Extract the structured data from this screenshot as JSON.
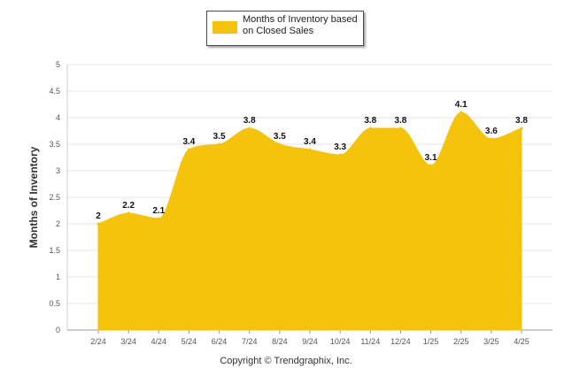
{
  "chart_data": {
    "type": "area",
    "categories": [
      "2/24",
      "3/24",
      "4/24",
      "5/24",
      "6/24",
      "7/24",
      "8/24",
      "9/24",
      "10/24",
      "11/24",
      "12/24",
      "1/25",
      "2/25",
      "3/25",
      "4/25"
    ],
    "series": [
      {
        "name": "Months of Inventory based on Closed Sales",
        "values": [
          2,
          2.2,
          2.1,
          3.4,
          3.5,
          3.8,
          3.5,
          3.4,
          3.3,
          3.8,
          3.8,
          3.1,
          4.1,
          3.6,
          3.8
        ],
        "color": "#f5c30b"
      }
    ],
    "data_labels": [
      "2",
      "2.2",
      "2.1",
      "3.4",
      "3.5",
      "3.8",
      "3.5",
      "3.4",
      "3.3",
      "3.8",
      "3.8",
      "3.1",
      "4.1",
      "3.6",
      "3.8"
    ],
    "yticks": [
      "0",
      "0.5",
      "1",
      "1.5",
      "2",
      "2.5",
      "3",
      "3.5",
      "4",
      "4.5",
      "5"
    ],
    "ylim": [
      0,
      5
    ],
    "ylabel": "Months of Inventory",
    "xlabel": "",
    "grid": true,
    "legend_position": "top-center"
  },
  "legend": {
    "label": "Months of Inventory based on Closed Sales",
    "color": "#f5c30b"
  },
  "footer": {
    "copyright": "Copyright © Trendgraphix, Inc."
  }
}
